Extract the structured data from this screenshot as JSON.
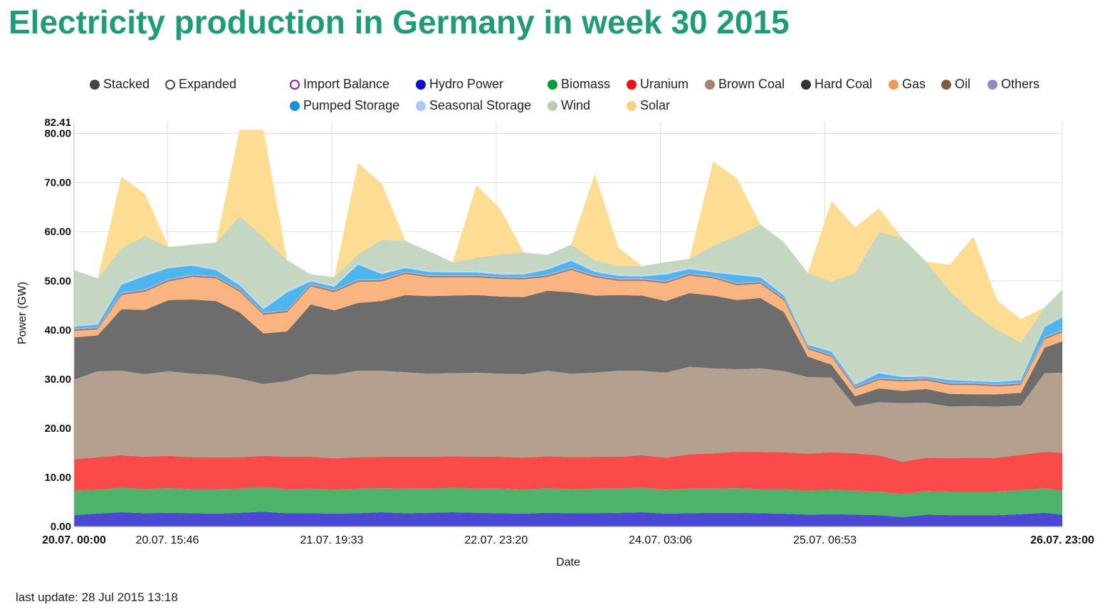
{
  "page": {
    "title": "Electricity production in Germany in week 30 2015",
    "last_update": "last update: 28 Jul 2015 13:18"
  },
  "legend": {
    "modes": [
      {
        "label": "Stacked",
        "color": "#444444",
        "style": "filled"
      },
      {
        "label": "Expanded",
        "color": "#444444",
        "style": "ring"
      }
    ],
    "sources": [
      {
        "label": "Import Balance",
        "color": "#7b2a8a",
        "style": "ring"
      },
      {
        "label": "Hydro Power",
        "color": "#0e0ecf",
        "style": "filled"
      },
      {
        "label": "Biomass",
        "color": "#0a9a3a",
        "style": "filled"
      },
      {
        "label": "Uranium",
        "color": "#ee1111",
        "style": "filled"
      },
      {
        "label": "Brown Coal",
        "color": "#9e8670",
        "style": "filled"
      },
      {
        "label": "Hard Coal",
        "color": "#333333",
        "style": "filled"
      },
      {
        "label": "Gas",
        "color": "#f49a55",
        "style": "filled"
      },
      {
        "label": "Oil",
        "color": "#7d5a43",
        "style": "filled"
      },
      {
        "label": "Others",
        "color": "#9a84c2",
        "style": "filled"
      },
      {
        "label": "Pumped Storage",
        "color": "#1493db",
        "style": "filled"
      },
      {
        "label": "Seasonal Storage",
        "color": "#aac8f6",
        "style": "filled"
      },
      {
        "label": "Wind",
        "color": "#b6ceaa",
        "style": "filled"
      },
      {
        "label": "Solar",
        "color": "#fdd27f",
        "style": "filled"
      }
    ]
  },
  "chart_data": {
    "type": "area",
    "stacked": true,
    "title": "Electricity production in Germany in week 30 2015",
    "xlabel": "Date",
    "ylabel": "Power (GW)",
    "ylim": [
      0,
      82.41
    ],
    "y_max_label": "82.41",
    "y_ticks": [
      "0.00",
      "10.00",
      "20.00",
      "30.00",
      "40.00",
      "50.00",
      "60.00",
      "70.00",
      "80.00"
    ],
    "x_ticks": [
      "20.07. 00:00",
      "20.07. 15:46",
      "21.07. 19:33",
      "22.07. 23:20",
      "24.07. 03:06",
      "25.07. 06:53",
      "26.07. 23:00"
    ],
    "x_tick_hours": [
      0,
      15.77,
      43.55,
      71.33,
      99.1,
      126.88,
      167
    ],
    "x_bold_ticks": [
      "20.07. 00:00",
      "26.07. 23:00"
    ],
    "x_range_hours": [
      0,
      167
    ],
    "grid": true,
    "x": [
      0,
      4,
      8,
      12,
      16,
      20,
      24,
      28,
      32,
      36,
      40,
      44,
      48,
      52,
      56,
      60,
      64,
      68,
      72,
      76,
      80,
      84,
      88,
      92,
      96,
      100,
      104,
      108,
      112,
      116,
      120,
      124,
      128,
      132,
      136,
      140,
      144,
      148,
      152,
      156,
      160,
      164,
      167
    ],
    "series": [
      {
        "name": "Hydro Power",
        "color": "#4b48d6",
        "values": [
          2.3,
          2.6,
          2.9,
          2.7,
          2.8,
          2.7,
          2.6,
          2.8,
          3.0,
          2.7,
          2.7,
          2.6,
          2.7,
          2.9,
          2.7,
          2.8,
          2.9,
          2.8,
          2.7,
          2.6,
          2.8,
          2.7,
          2.7,
          2.8,
          2.9,
          2.6,
          2.7,
          2.8,
          2.8,
          2.7,
          2.6,
          2.4,
          2.5,
          2.4,
          2.3,
          1.9,
          2.4,
          2.3,
          2.3,
          2.3,
          2.5,
          2.8,
          2.4
        ]
      },
      {
        "name": "Biomass",
        "color": "#4db36b",
        "values": [
          5.0,
          4.9,
          5.0,
          4.9,
          5.0,
          4.9,
          5.0,
          4.9,
          5.0,
          4.9,
          5.0,
          4.9,
          5.0,
          4.9,
          5.0,
          4.9,
          5.0,
          4.9,
          5.0,
          4.9,
          5.0,
          4.9,
          5.0,
          4.9,
          5.0,
          4.9,
          5.0,
          4.9,
          5.0,
          4.9,
          5.0,
          4.9,
          5.0,
          4.9,
          4.8,
          4.7,
          4.8,
          4.8,
          4.8,
          4.8,
          4.9,
          5.0,
          4.8
        ]
      },
      {
        "name": "Uranium",
        "color": "#fb4a4a",
        "values": [
          6.4,
          6.6,
          6.6,
          6.6,
          6.6,
          6.5,
          6.5,
          6.4,
          6.4,
          6.6,
          6.5,
          6.4,
          6.4,
          6.4,
          6.5,
          6.5,
          6.4,
          6.5,
          6.5,
          6.5,
          6.5,
          6.5,
          6.5,
          6.5,
          6.6,
          6.5,
          7.0,
          7.2,
          7.4,
          7.6,
          7.5,
          7.5,
          7.6,
          7.6,
          7.4,
          6.6,
          6.8,
          6.8,
          6.9,
          6.9,
          7.2,
          7.4,
          7.8
        ]
      },
      {
        "name": "Brown Coal",
        "color": "#b3a18d",
        "values": [
          16.2,
          17.5,
          17.2,
          16.8,
          17.2,
          17.0,
          16.8,
          16.0,
          14.6,
          15.4,
          16.8,
          17.0,
          17.6,
          17.5,
          17.2,
          16.9,
          16.9,
          17.1,
          16.9,
          17.0,
          17.4,
          17.0,
          17.1,
          17.5,
          17.2,
          17.3,
          17.8,
          17.3,
          16.8,
          17.0,
          16.5,
          15.6,
          15.2,
          9.5,
          10.8,
          11.9,
          11.2,
          10.5,
          10.5,
          10.4,
          10.0,
          16.0,
          16.3
        ]
      },
      {
        "name": "Hard Coal",
        "color": "#6d6d6d",
        "values": [
          8.6,
          7.3,
          12.5,
          13.1,
          14.5,
          15.1,
          15.0,
          13.5,
          10.3,
          10.1,
          14.2,
          13.1,
          13.8,
          14.2,
          15.7,
          15.8,
          15.8,
          15.8,
          15.7,
          15.7,
          16.3,
          16.6,
          15.7,
          15.4,
          15.3,
          14.6,
          15.0,
          14.8,
          14.1,
          14.3,
          12.0,
          4.2,
          2.6,
          2.1,
          2.8,
          2.5,
          2.8,
          2.6,
          2.4,
          2.5,
          2.6,
          5.2,
          6.4
        ]
      },
      {
        "name": "Gas",
        "color": "#f9b480",
        "values": [
          1.3,
          1.2,
          2.9,
          3.7,
          3.8,
          4.6,
          4.6,
          4.2,
          3.8,
          3.9,
          3.7,
          3.7,
          4.3,
          4.0,
          4.3,
          3.8,
          3.7,
          3.6,
          3.6,
          3.6,
          2.8,
          4.5,
          3.7,
          2.9,
          3.0,
          3.6,
          3.6,
          3.5,
          3.0,
          2.9,
          2.4,
          1.5,
          1.6,
          1.5,
          1.7,
          1.9,
          1.7,
          1.8,
          1.9,
          1.6,
          1.6,
          1.7,
          1.8
        ]
      },
      {
        "name": "Oil",
        "color": "#9c7a60",
        "values": [
          0.3,
          0.3,
          0.3,
          0.3,
          0.3,
          0.3,
          0.3,
          0.3,
          0.3,
          0.3,
          0.3,
          0.3,
          0.3,
          0.3,
          0.3,
          0.3,
          0.3,
          0.3,
          0.3,
          0.3,
          0.3,
          0.3,
          0.3,
          0.3,
          0.3,
          0.3,
          0.3,
          0.3,
          0.3,
          0.3,
          0.3,
          0.3,
          0.3,
          0.3,
          0.3,
          0.3,
          0.3,
          0.3,
          0.3,
          0.3,
          0.3,
          0.3,
          0.3
        ]
      },
      {
        "name": "Others",
        "color": "#b9a9d8",
        "values": [
          0.2,
          0.2,
          0.2,
          0.2,
          0.2,
          0.2,
          0.2,
          0.2,
          0.2,
          0.2,
          0.2,
          0.2,
          0.2,
          0.2,
          0.2,
          0.2,
          0.2,
          0.2,
          0.2,
          0.2,
          0.2,
          0.2,
          0.2,
          0.2,
          0.2,
          0.2,
          0.2,
          0.2,
          0.2,
          0.2,
          0.2,
          0.2,
          0.2,
          0.2,
          0.2,
          0.2,
          0.2,
          0.2,
          0.2,
          0.2,
          0.2,
          0.2,
          0.2
        ]
      },
      {
        "name": "Pumped Storage",
        "color": "#4eb6ee",
        "values": [
          0.4,
          0.5,
          1.6,
          2.7,
          2.2,
          1.8,
          1.2,
          0.8,
          0.6,
          3.6,
          0.5,
          0.6,
          3.0,
          1.0,
          0.7,
          0.6,
          0.5,
          0.5,
          0.4,
          0.5,
          1.0,
          1.4,
          0.6,
          0.5,
          0.4,
          1.3,
          0.8,
          0.7,
          1.6,
          0.8,
          0.5,
          0.4,
          0.6,
          0.4,
          0.9,
          0.4,
          0.3,
          0.5,
          0.3,
          0.4,
          0.5,
          2.0,
          2.6
        ]
      },
      {
        "name": "Seasonal Storage",
        "color": "#c4d8f8",
        "values": [
          0.2,
          0.3,
          0.4,
          0.4,
          0.3,
          0.3,
          0.3,
          0.3,
          0.3,
          0.4,
          0.4,
          0.3,
          0.4,
          0.3,
          0.3,
          0.3,
          0.3,
          0.3,
          0.3,
          0.3,
          0.3,
          0.4,
          0.3,
          0.3,
          0.3,
          0.3,
          0.3,
          0.3,
          0.3,
          0.3,
          0.3,
          0.3,
          0.3,
          0.3,
          0.3,
          0.3,
          0.3,
          0.3,
          0.3,
          0.3,
          0.3,
          0.3,
          0.3
        ]
      },
      {
        "name": "Wind",
        "color": "#c4d7c0",
        "values": [
          11.3,
          9.1,
          7.1,
          7.7,
          4.0,
          4.0,
          5.3,
          13.8,
          14.4,
          6.1,
          1.0,
          1.7,
          1.7,
          6.7,
          5.2,
          3.9,
          1.8,
          2.7,
          3.8,
          4.2,
          2.7,
          2.9,
          2.1,
          1.8,
          1.8,
          2.2,
          1.8,
          5.2,
          7.6,
          10.5,
          10.5,
          14.3,
          14.0,
          22.4,
          28.5,
          28.0,
          23.1,
          17.8,
          13.6,
          10.3,
          7.4,
          3.7,
          5.3
        ]
      },
      {
        "name": "Solar",
        "color": "#fedd92",
        "values": [
          0.0,
          0.0,
          14.5,
          8.6,
          0.0,
          0.0,
          0.0,
          17.6,
          21.9,
          0.0,
          0.0,
          0.0,
          18.6,
          11.4,
          0.0,
          0.0,
          0.0,
          14.8,
          9.3,
          0.0,
          0.0,
          0.0,
          17.6,
          3.7,
          0.0,
          0.0,
          0.0,
          17.1,
          11.8,
          0.0,
          0.0,
          0.0,
          16.3,
          9.3,
          4.8,
          0.0,
          0.0,
          5.4,
          15.5,
          6.0,
          4.7,
          0.0,
          0.0
        ]
      }
    ]
  }
}
